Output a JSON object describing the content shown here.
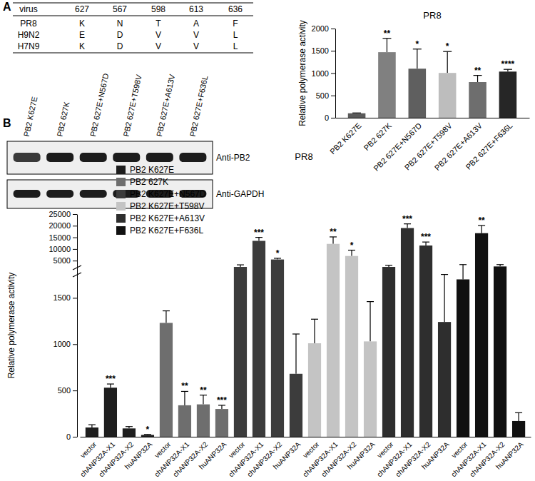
{
  "panel_labels": [
    "A",
    "B"
  ],
  "table": {
    "header": [
      "virus",
      "627",
      "567",
      "598",
      "613",
      "636"
    ],
    "rows": [
      [
        "PR8",
        "K",
        "N",
        "T",
        "A",
        "F"
      ],
      [
        "H9N2",
        "E",
        "D",
        "V",
        "V",
        "L"
      ],
      [
        "H7N9",
        "K",
        "D",
        "V",
        "V",
        "L"
      ]
    ]
  },
  "blot": {
    "lanes": [
      "PB2 K627E",
      "PB2 627K",
      "PB2 627E+N567D",
      "PB2 627E+T598V",
      "PB2 627E+A613V",
      "PB2 627E+F636L"
    ],
    "antibodies": [
      "Anti-PB2",
      "Anti-GAPDH"
    ]
  },
  "chart_data": [
    {
      "type": "bar",
      "title": "PR8",
      "y_label": "Relative polymerase activity",
      "categories": [
        "PB2 K627E",
        "PB2 627K",
        "PB2 627E+N567D",
        "PB2 627E+T598V",
        "PB2 627E+A613V",
        "PB2 627E+F636L"
      ],
      "values": [
        100,
        1470,
        1100,
        1005,
        800,
        1035
      ],
      "errors": [
        8,
        310,
        440,
        480,
        150,
        50
      ],
      "significance": [
        null,
        "**",
        "*",
        "*",
        "**",
        "****"
      ],
      "colors": [
        "#5a5a5a",
        "#808080",
        "#5f5f5f",
        "#bdbdbd",
        "#6e6e6e",
        "#262626"
      ],
      "ylim": [
        0,
        2000
      ],
      "yticks": [
        0,
        500,
        1000,
        1500,
        2000
      ]
    },
    {
      "type": "bar",
      "title": "PR8",
      "y_label": "Relative polymerase activity",
      "categories": [
        "vector",
        "chANP32A-X1",
        "chANP32A-X2",
        "huANP32A"
      ],
      "series": [
        {
          "name": "PB2 K627E",
          "color": "#1e1e1e",
          "values": [
            100,
            530,
            90,
            20
          ],
          "errors": [
            30,
            40,
            20,
            5
          ],
          "significance": [
            null,
            "***",
            null,
            "*"
          ]
        },
        {
          "name": "PB2 627K",
          "color": "#6e6e6e",
          "values": [
            1230,
            340,
            350,
            300
          ],
          "errors": [
            130,
            150,
            100,
            40
          ],
          "significance": [
            null,
            "**",
            "**",
            "***"
          ]
        },
        {
          "name": "PB2 K627E+N567D",
          "color": "#3c3c3c",
          "values": [
            2300,
            13500,
            5500,
            680
          ],
          "errors": [
            900,
            1500,
            500,
            430
          ],
          "significance": [
            null,
            "***",
            "*",
            null
          ]
        },
        {
          "name": "PB2 K627E+T598V",
          "color": "#c4c4c4",
          "values": [
            1010,
            12200,
            7000,
            1030
          ],
          "errors": [
            260,
            3000,
            2500,
            430
          ],
          "significance": [
            null,
            "**",
            "*",
            null
          ]
        },
        {
          "name": "PB2 K627E+A613V",
          "color": "#2e2e2e",
          "values": [
            2300,
            19000,
            11500,
            1240
          ],
          "errors": [
            700,
            1800,
            1500,
            520
          ],
          "significance": [
            null,
            "***",
            "***",
            null
          ]
        },
        {
          "name": "PB2 K627E+F636L",
          "color": "#111111",
          "values": [
            1700,
            16800,
            2500,
            170
          ],
          "errors": [
            1600,
            3300,
            800,
            90
          ],
          "significance": [
            null,
            "**",
            null,
            null
          ]
        }
      ],
      "ylim": [
        0,
        25000
      ],
      "yticks": [
        0,
        500,
        1000,
        1500,
        5000,
        10000,
        15000,
        20000,
        25000
      ],
      "axis_break": [
        1750,
        2000
      ],
      "legend": "upper left"
    }
  ]
}
